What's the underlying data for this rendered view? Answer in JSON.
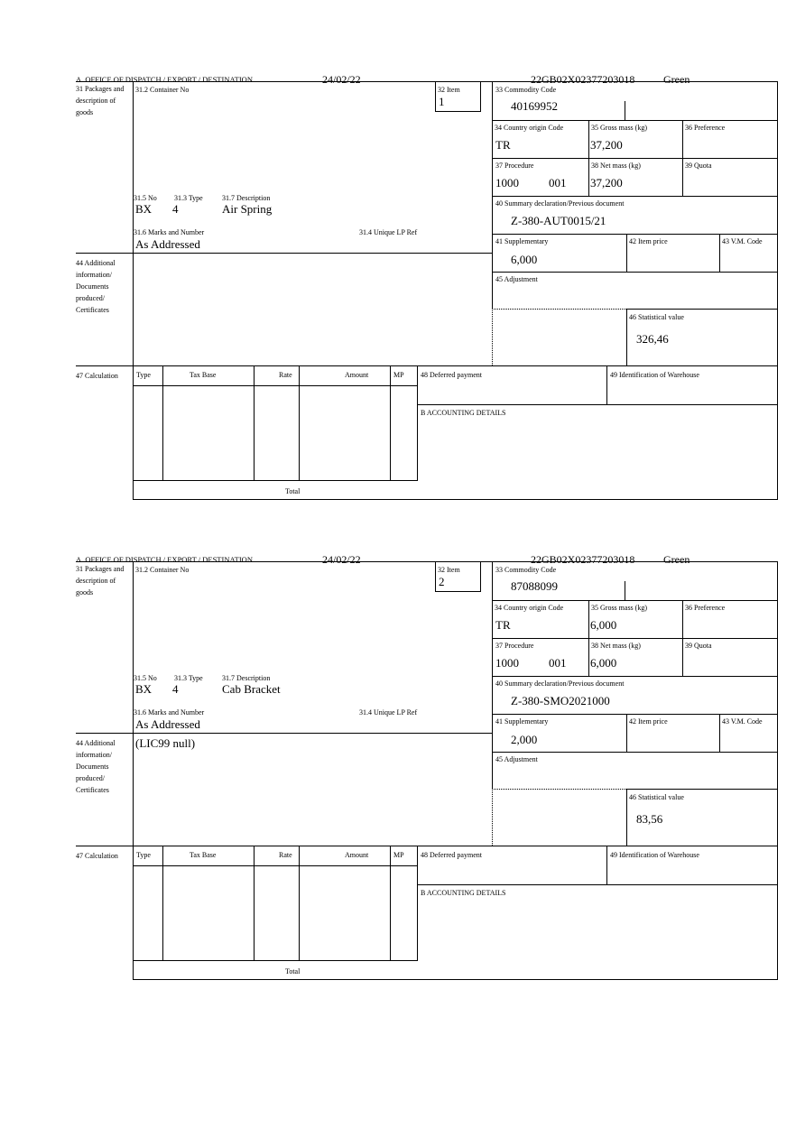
{
  "labels": {
    "office": "A.  OFFICE OF DISPATCH / EXPORT / DESTINATION",
    "packages": "31 Packages and description of goods",
    "container": "31.2 Container No",
    "item": "32 Item",
    "no": "31.5 No",
    "type": "31.3 Type",
    "description": "31.7 Description",
    "marks": "31.6 Marks and Number",
    "unique_ref": "31.4 Unique LP Ref",
    "commodity": "33 Commodity Code",
    "country": "34 Country origin Code",
    "gross": "35 Gross mass (kg)",
    "preference": "36 Preference",
    "procedure": "37 Procedure",
    "net": "38 Net mass (kg)",
    "quota": "39 Quota",
    "summary": "40 Summary declaration/Previous document",
    "supplementary": "41 Supplementary",
    "item_price": "42 Item price",
    "vm_code": "43 V.M. Code",
    "additional": "44 Additional information/ Documents produced/ Certificates",
    "adjustment": "45 Adjustment",
    "statistical": "46 Statistical value",
    "calculation": "47 Calculation",
    "calc_type": "Type",
    "tax_base": "Tax Base",
    "rate": "Rate",
    "amount": "Amount",
    "mp": "MP",
    "total": "Total",
    "deferred": "48 Deferred payment",
    "warehouse": "49 Identification of Warehouse",
    "accounting": "B ACCOUNTING DETAILS"
  },
  "items": [
    {
      "date": "24/02/22",
      "reference": "22GB02X02377203018",
      "route": "Green",
      "item_no": "1",
      "package_kind": "BX",
      "package_count": "4",
      "description": "Air Spring",
      "marks": "As Addressed",
      "commodity_code": "40169952",
      "country_origin": "TR",
      "gross_mass": "37,200",
      "procedure": "1000",
      "procedure_additional": "001",
      "net_mass": "37,200",
      "summary_doc": "Z-380-AUT0015/21",
      "supplementary": "6,000",
      "additional_info": "",
      "statistical_value": "326,46"
    },
    {
      "date": "24/02/22",
      "reference": "22GB02X02377203018",
      "route": "Green",
      "item_no": "2",
      "package_kind": "BX",
      "package_count": "4",
      "description": "Cab Bracket",
      "marks": "As Addressed",
      "commodity_code": "87088099",
      "country_origin": "TR",
      "gross_mass": "6,000",
      "procedure": "1000",
      "procedure_additional": "001",
      "net_mass": "6,000",
      "summary_doc": "Z-380-SMO2021000",
      "supplementary": "2,000",
      "additional_info": "(LIC99 null)",
      "statistical_value": "83,56"
    }
  ]
}
